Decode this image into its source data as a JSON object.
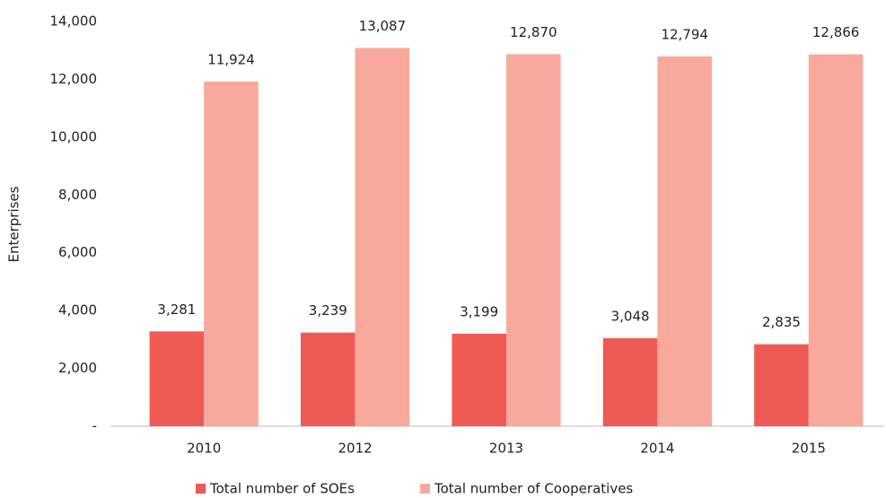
{
  "chart_data": {
    "type": "bar",
    "y_label": "Enterprises",
    "categories": [
      "2010",
      "2012",
      "2013",
      "2014",
      "2015"
    ],
    "series": [
      {
        "name": "Total number of SOEs",
        "color": "#f05a55",
        "values": [
          3281,
          3239,
          3199,
          3048,
          2835
        ],
        "value_labels": [
          "3,281",
          "3,239",
          "3,199",
          "3,048",
          "2,835"
        ]
      },
      {
        "name": "Total number of Cooperatives",
        "color": "#f9a99b",
        "values": [
          11924,
          13087,
          12870,
          12794,
          12866
        ],
        "value_labels": [
          "11,924",
          "13,087",
          "12,870",
          "12,794",
          "12,866"
        ]
      }
    ],
    "ylim": [
      0,
      14000
    ],
    "yticks": [
      {
        "value": 0,
        "label": "-"
      },
      {
        "value": 2000,
        "label": "2,000"
      },
      {
        "value": 4000,
        "label": "4,000"
      },
      {
        "value": 6000,
        "label": "6,000"
      },
      {
        "value": 8000,
        "label": "8,000"
      },
      {
        "value": 10000,
        "label": "10,000"
      },
      {
        "value": 12000,
        "label": "12,000"
      },
      {
        "value": 14000,
        "label": "14,000"
      }
    ],
    "grid": false,
    "legend": "bottom"
  }
}
